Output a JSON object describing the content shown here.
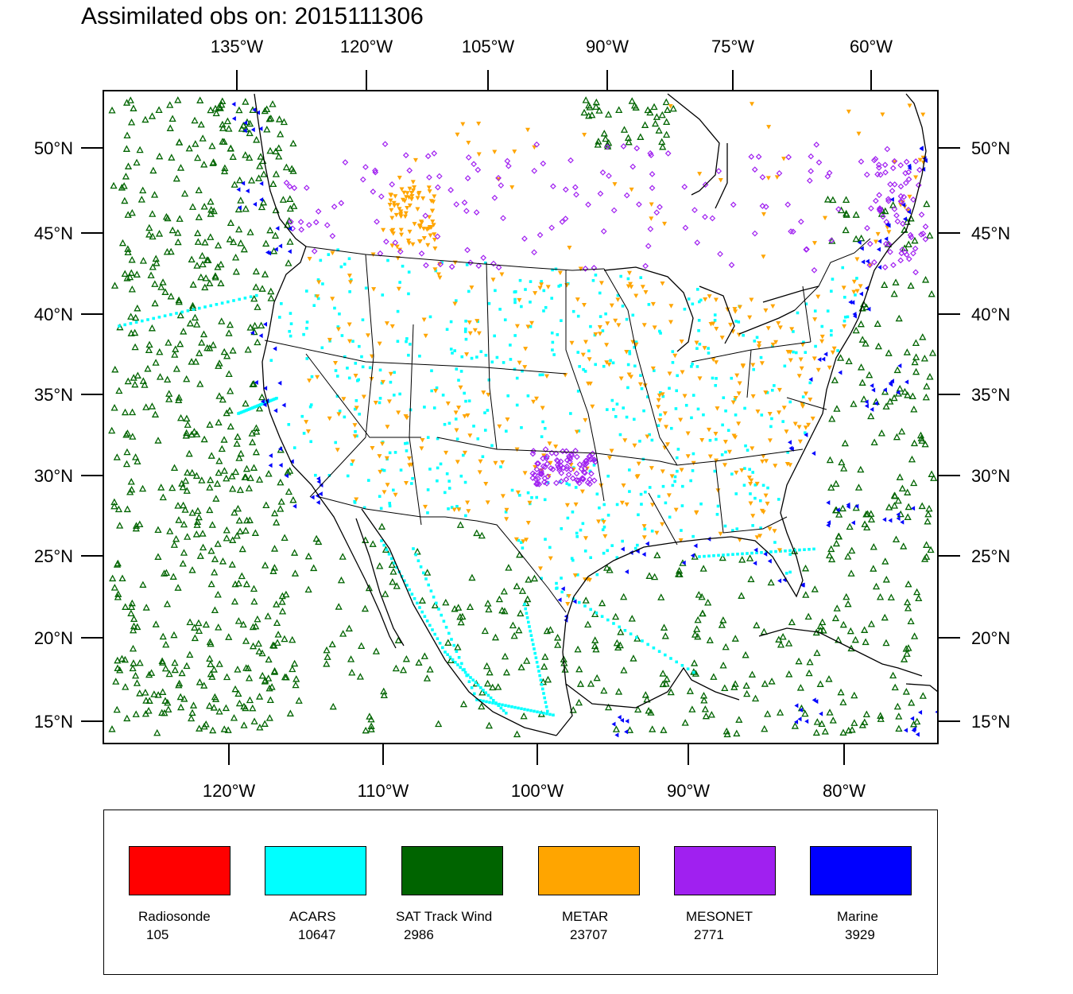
{
  "title": "Assimilated obs on: 2015111306",
  "map": {
    "top_lon_labels": [
      "135°W",
      "120°W",
      "105°W",
      "90°W",
      "75°W",
      "60°W"
    ],
    "bottom_lon_labels": [
      "120°W",
      "110°W",
      "100°W",
      "90°W",
      "80°W"
    ],
    "lat_labels": [
      "50°N",
      "45°N",
      "40°N",
      "35°N",
      "30°N",
      "25°N",
      "20°N",
      "15°N"
    ]
  },
  "legend": {
    "items": [
      {
        "name": "Radiosonde",
        "count": "105",
        "color": "#ff0000"
      },
      {
        "name": "ACARS",
        "count": "10647",
        "color": "#00ffff"
      },
      {
        "name": "SAT Track Wind",
        "count": "2986",
        "color": "#006400"
      },
      {
        "name": "METAR",
        "count": "23707",
        "color": "#ffa500"
      },
      {
        "name": "MESONET",
        "count": "2771",
        "color": "#a020f0"
      },
      {
        "name": "Marine",
        "count": "3929",
        "color": "#0000ff"
      }
    ]
  },
  "colors": {
    "acars": "#00ffff",
    "sat": "#006400",
    "metar": "#ffa500",
    "mesonet": "#a020f0",
    "marine": "#0000ff"
  }
}
